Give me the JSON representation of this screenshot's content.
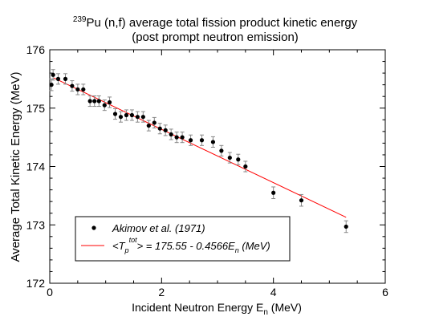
{
  "chart_data": {
    "type": "scatter",
    "title": {
      "sup": "239",
      "line1_rest": "Pu (n,f) average total fission product kinetic energy",
      "line2": "(post prompt neutron emission)"
    },
    "xlabel": {
      "main": "Incident Neutron Energy  E",
      "sub": "n",
      "unit": "  (MeV)"
    },
    "ylabel": "Average Total Kinetic Energy  (MeV)",
    "xlim": [
      0,
      6
    ],
    "ylim": [
      172,
      176
    ],
    "xticks": [
      "0",
      "2",
      "4",
      "6"
    ],
    "yticks": [
      "172",
      "173",
      "174",
      "175",
      "176"
    ],
    "grid": false,
    "legend_position": "bottom-left",
    "legend": {
      "data_label": "Akimov et al. (1971)",
      "fit_label": {
        "lt": "<T",
        "sub": "p",
        "sup": "tot",
        "eq": "> = 175.55 - 0.4566E",
        "esub": "n",
        "unit": "  (MeV)"
      }
    },
    "series": [
      {
        "marker": "circle",
        "color": "#000000",
        "points": [
          {
            "x": 0.03,
            "y": 175.4,
            "err": 0.1
          },
          {
            "x": 0.06,
            "y": 175.57,
            "err": 0.09
          },
          {
            "x": 0.15,
            "y": 175.5,
            "err": 0.09
          },
          {
            "x": 0.28,
            "y": 175.5,
            "err": 0.09
          },
          {
            "x": 0.4,
            "y": 175.38,
            "err": 0.09
          },
          {
            "x": 0.5,
            "y": 175.32,
            "err": 0.09
          },
          {
            "x": 0.6,
            "y": 175.32,
            "err": 0.09
          },
          {
            "x": 0.72,
            "y": 175.12,
            "err": 0.09
          },
          {
            "x": 0.8,
            "y": 175.12,
            "err": 0.09
          },
          {
            "x": 0.88,
            "y": 175.12,
            "err": 0.09
          },
          {
            "x": 0.98,
            "y": 175.05,
            "err": 0.09
          },
          {
            "x": 1.07,
            "y": 175.1,
            "err": 0.09
          },
          {
            "x": 1.17,
            "y": 174.9,
            "err": 0.09
          },
          {
            "x": 1.27,
            "y": 174.85,
            "err": 0.09
          },
          {
            "x": 1.37,
            "y": 174.88,
            "err": 0.09
          },
          {
            "x": 1.47,
            "y": 174.88,
            "err": 0.09
          },
          {
            "x": 1.57,
            "y": 174.85,
            "err": 0.09
          },
          {
            "x": 1.67,
            "y": 174.85,
            "err": 0.09
          },
          {
            "x": 1.77,
            "y": 174.7,
            "err": 0.09
          },
          {
            "x": 1.87,
            "y": 174.75,
            "err": 0.09
          },
          {
            "x": 1.97,
            "y": 174.65,
            "err": 0.09
          },
          {
            "x": 2.07,
            "y": 174.62,
            "err": 0.09
          },
          {
            "x": 2.17,
            "y": 174.55,
            "err": 0.09
          },
          {
            "x": 2.27,
            "y": 174.5,
            "err": 0.09
          },
          {
            "x": 2.37,
            "y": 174.5,
            "err": 0.09
          },
          {
            "x": 2.52,
            "y": 174.45,
            "err": 0.09
          },
          {
            "x": 2.72,
            "y": 174.45,
            "err": 0.09
          },
          {
            "x": 2.92,
            "y": 174.42,
            "err": 0.09
          },
          {
            "x": 3.07,
            "y": 174.27,
            "err": 0.09
          },
          {
            "x": 3.22,
            "y": 174.15,
            "err": 0.09
          },
          {
            "x": 3.37,
            "y": 174.12,
            "err": 0.09
          },
          {
            "x": 3.5,
            "y": 174.0,
            "err": 0.09
          },
          {
            "x": 4.0,
            "y": 173.55,
            "err": 0.1
          },
          {
            "x": 4.5,
            "y": 173.42,
            "err": 0.1
          },
          {
            "x": 5.3,
            "y": 172.97,
            "err": 0.1
          }
        ]
      },
      {
        "kind": "line",
        "color": "#ff0000",
        "x": [
          0.07,
          5.3
        ],
        "fit": {
          "intercept": 175.55,
          "slope": -0.4566
        }
      }
    ]
  }
}
